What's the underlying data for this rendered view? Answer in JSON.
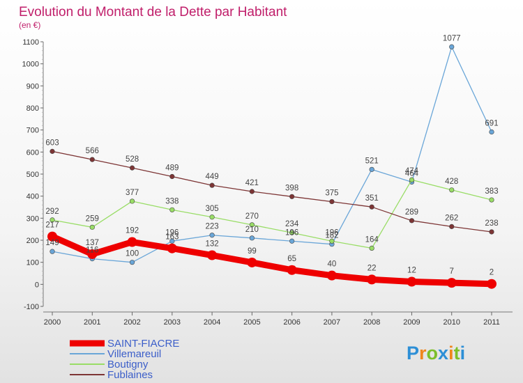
{
  "chart_data": {
    "type": "line",
    "title": "Evolution du Montant de la Dette par Habitant",
    "subtitle": "(en €)",
    "x": [
      "2000",
      "2001",
      "2002",
      "2003",
      "2004",
      "2005",
      "2006",
      "2007",
      "2008",
      "2009",
      "2010",
      "2011"
    ],
    "ylim": [
      -100,
      1100
    ],
    "yticks": [
      -100,
      0,
      100,
      200,
      300,
      400,
      500,
      600,
      700,
      800,
      900,
      1000,
      1100
    ],
    "grid": false,
    "legend_position": "bottom-left",
    "series": [
      {
        "name": "SAINT-FIACRE",
        "color": "#ee0000",
        "values": [
          217,
          137,
          192,
          163,
          132,
          99,
          65,
          40,
          22,
          12,
          7,
          2
        ],
        "emphasis": true
      },
      {
        "name": "Villemareuil",
        "color": "#6aa6d8",
        "values": [
          149,
          116,
          100,
          196,
          223,
          210,
          196,
          182,
          521,
          464,
          1077,
          691
        ],
        "emphasis": false
      },
      {
        "name": "Boutigny",
        "color": "#99dd66",
        "values": [
          292,
          259,
          377,
          338,
          305,
          270,
          234,
          196,
          164,
          474,
          428,
          383
        ],
        "emphasis": false
      },
      {
        "name": "Fublaines",
        "color": "#7d3535",
        "values": [
          603,
          566,
          528,
          489,
          449,
          421,
          398,
          375,
          351,
          289,
          262,
          238
        ],
        "emphasis": false
      }
    ]
  },
  "logo": {
    "letters": [
      "P",
      "r",
      "o",
      "x",
      "i",
      "t",
      "i"
    ],
    "colors": [
      "#2d8fd6",
      "#f0861c",
      "#7cbf2a",
      "#2d8fd6",
      "#f0861c",
      "#7cbf2a",
      "#2d8fd6"
    ]
  }
}
